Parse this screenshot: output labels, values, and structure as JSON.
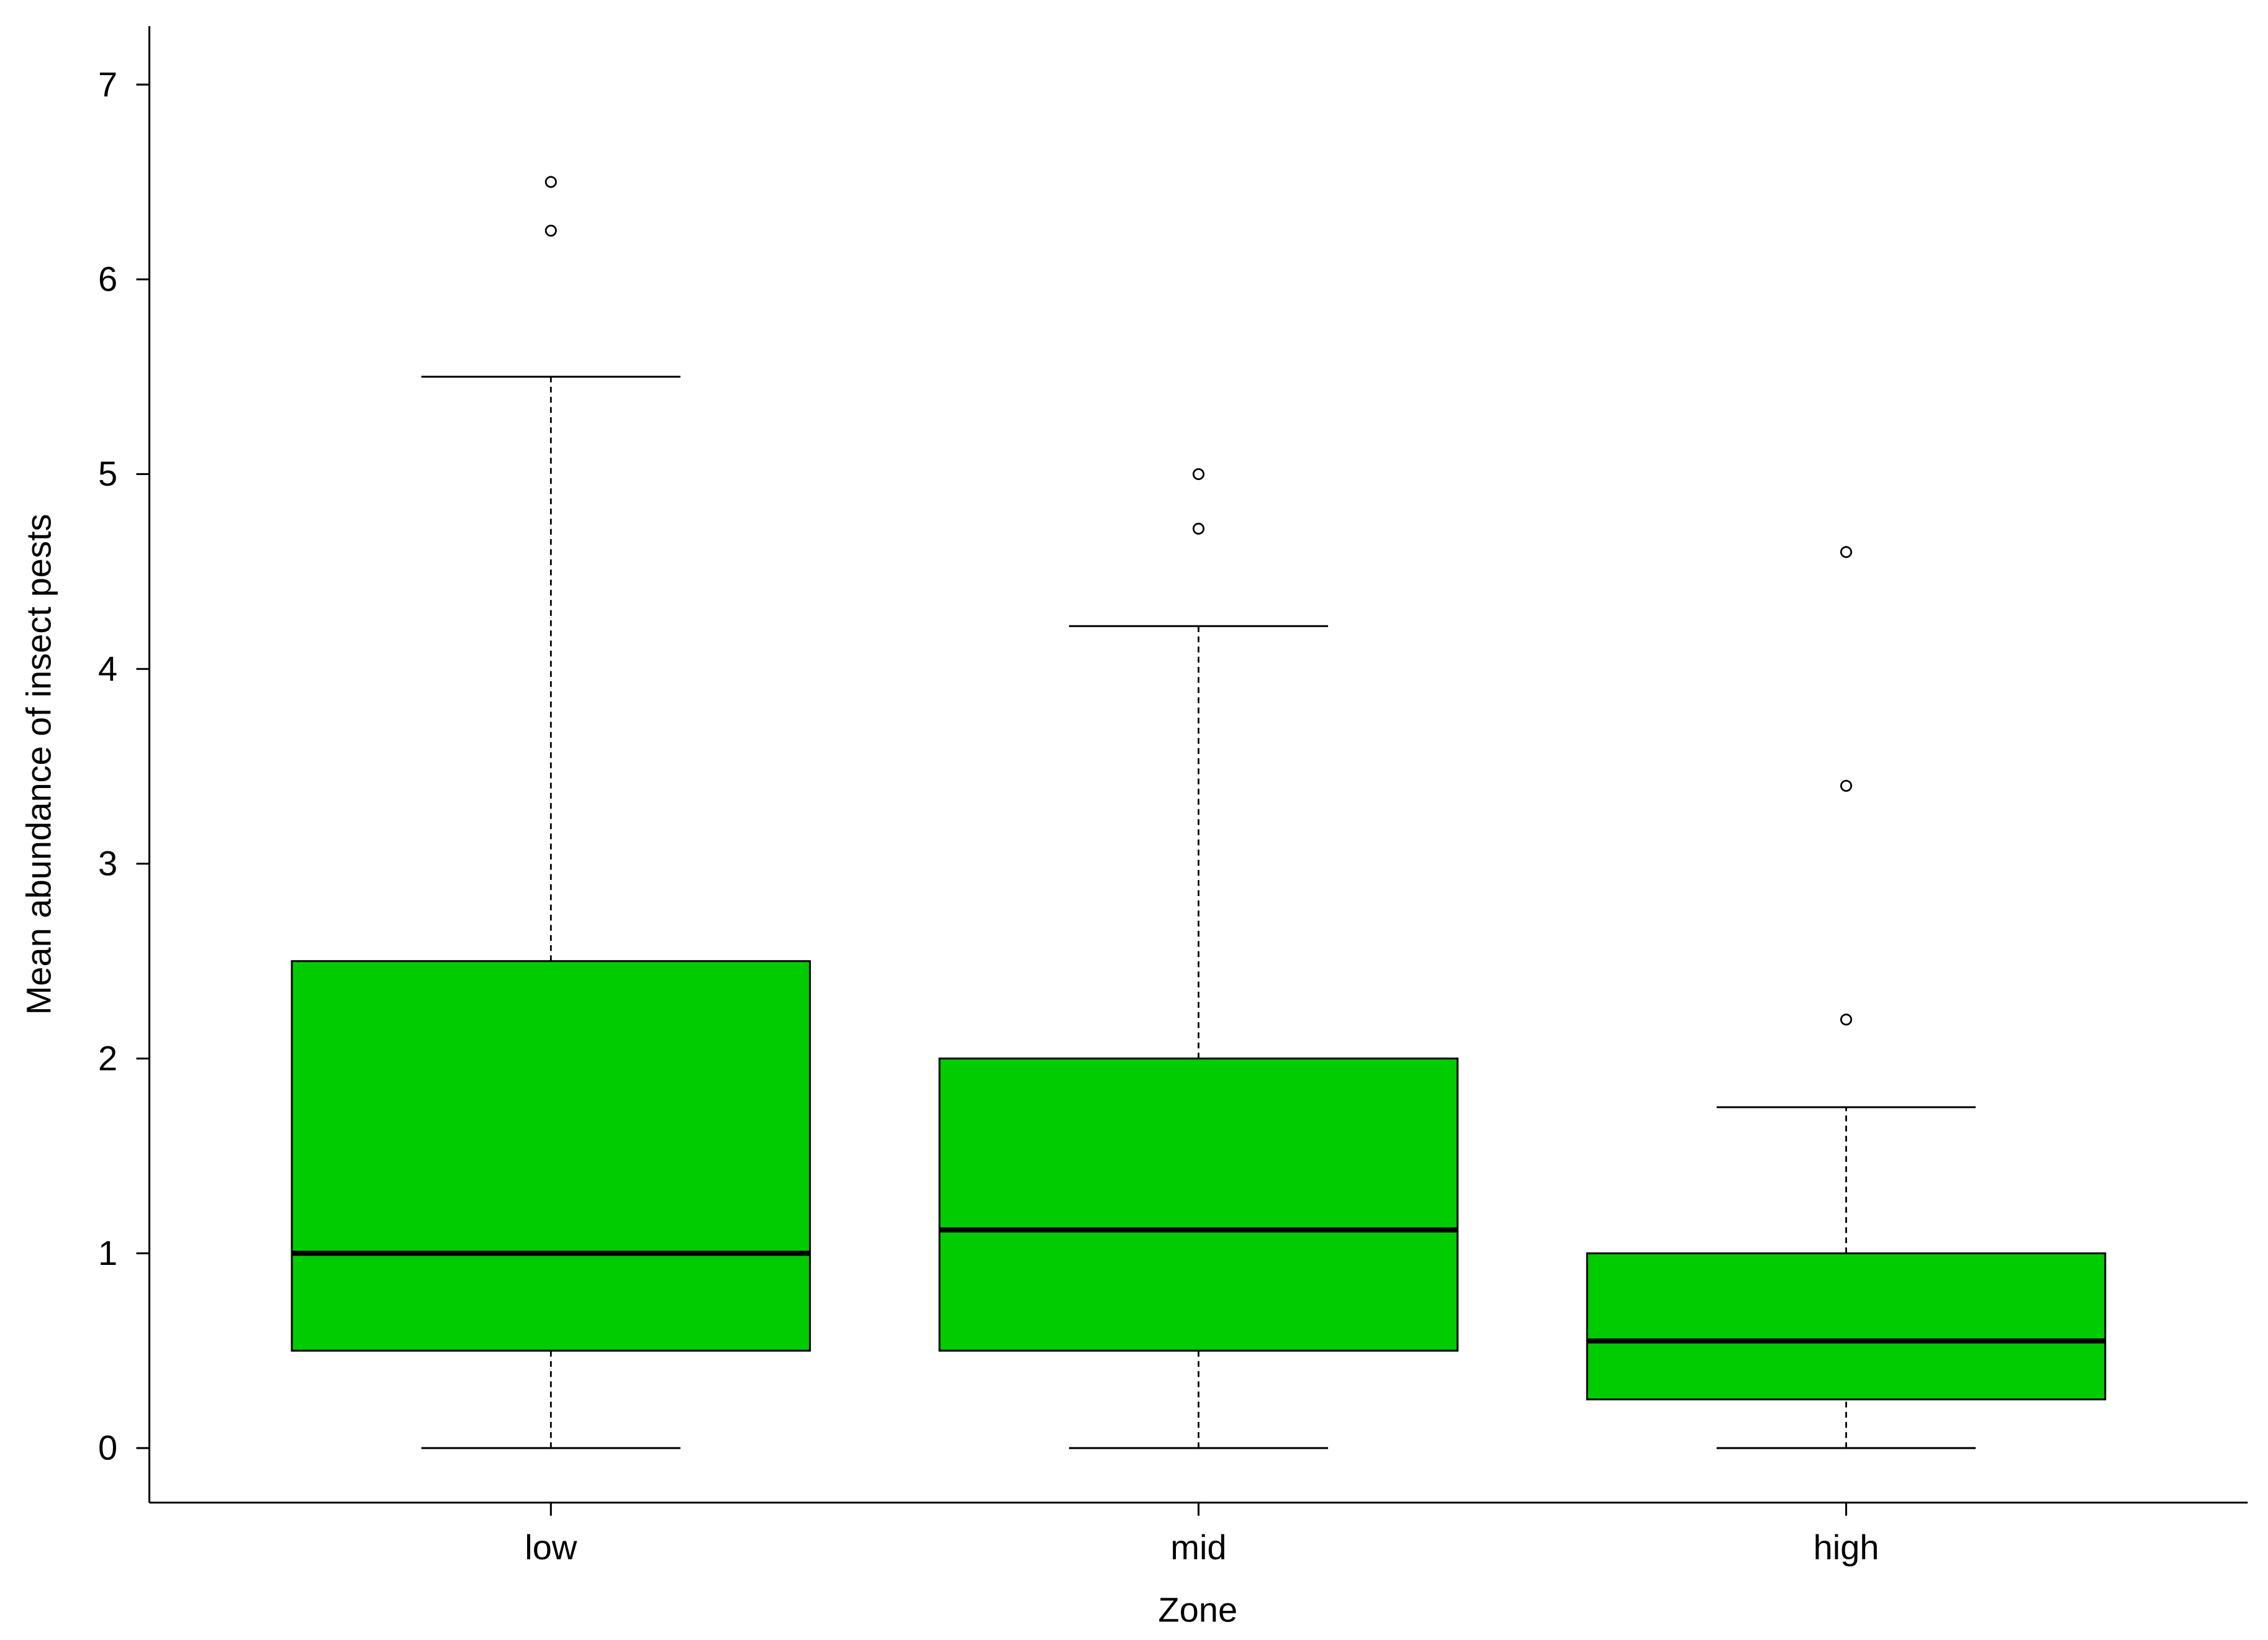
{
  "chart_data": {
    "type": "boxplot",
    "x_label": "Zone",
    "y_label": "Mean abundance of insect pests",
    "categories": [
      "low",
      "mid",
      "high"
    ],
    "color": "#00cc00",
    "boxes": [
      {
        "whisker_low": 0,
        "q1": 0.5,
        "median": 1.0,
        "q3": 2.5,
        "whisker_high": 5.5,
        "outliers": [
          6.5,
          6.25
        ]
      },
      {
        "whisker_low": 0,
        "q1": 0.5,
        "median": 1.12,
        "q3": 2.0,
        "whisker_high": 4.22,
        "outliers": [
          5.0,
          4.72
        ]
      },
      {
        "whisker_low": 0,
        "q1": 0.25,
        "median": 0.55,
        "q3": 1.0,
        "whisker_high": 1.75,
        "outliers": [
          4.6,
          3.4,
          2.2
        ]
      }
    ],
    "ylim": [
      -0.28,
      7.3
    ],
    "yticks": [
      0,
      1,
      2,
      3,
      4,
      5,
      6,
      7
    ]
  }
}
